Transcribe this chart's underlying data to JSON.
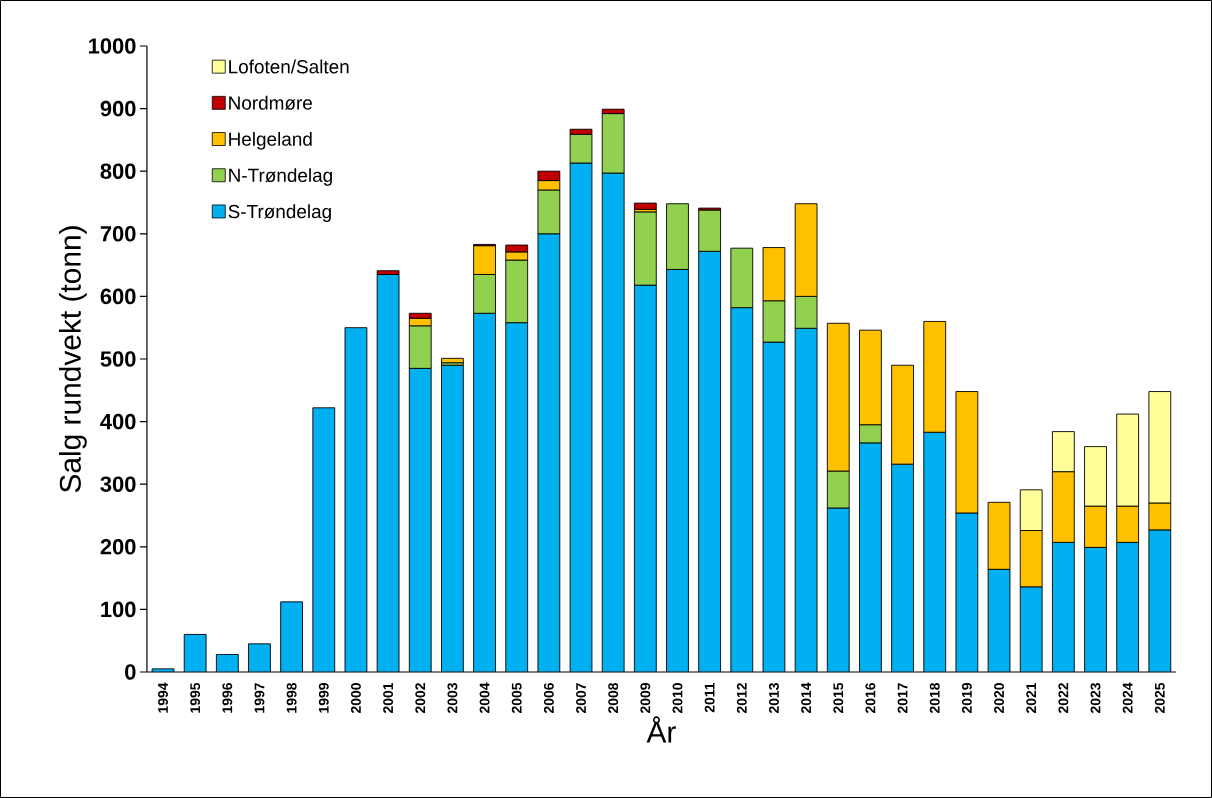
{
  "chart_data": {
    "type": "bar",
    "stacked": true,
    "xlabel": "År",
    "ylabel": "Salg rundvekt (tonn)",
    "categories": [
      "1994",
      "1995",
      "1996",
      "1997",
      "1998",
      "1999",
      "2000",
      "2001",
      "2002",
      "2003",
      "2004",
      "2005",
      "2006",
      "2007",
      "2008",
      "2009",
      "2010",
      "2011",
      "2012",
      "2013",
      "2014",
      "2015",
      "2016",
      "2017",
      "2018",
      "2019",
      "2020",
      "2021",
      "2022",
      "2023",
      "2024",
      "2025"
    ],
    "series": [
      {
        "name": "S-Trøndelag",
        "color": "#00b0f0",
        "values": [
          5,
          60,
          28,
          45,
          112,
          422,
          550,
          635,
          485,
          490,
          573,
          558,
          700,
          813,
          797,
          618,
          643,
          672,
          582,
          527,
          549,
          262,
          366,
          332,
          383,
          254,
          164,
          136,
          207,
          199,
          207,
          227
        ]
      },
      {
        "name": "N-Trøndelag",
        "color": "#92d050",
        "values": [
          null,
          null,
          null,
          null,
          null,
          null,
          null,
          null,
          68,
          4,
          62,
          100,
          70,
          46,
          95,
          117,
          105,
          66,
          95,
          66,
          51,
          59,
          29,
          null,
          null,
          null,
          null,
          null,
          null,
          null,
          null,
          null
        ]
      },
      {
        "name": "Helgeland",
        "color": "#ffc000",
        "values": [
          null,
          null,
          null,
          null,
          null,
          null,
          null,
          null,
          12,
          7,
          46,
          13,
          15,
          null,
          null,
          4,
          null,
          null,
          null,
          85,
          148,
          236,
          151,
          158,
          177,
          194,
          107,
          90,
          113,
          66,
          58,
          43
        ]
      },
      {
        "name": "Nordmøre",
        "color": "#c00000",
        "values": [
          null,
          null,
          null,
          null,
          null,
          null,
          null,
          6,
          8,
          null,
          2,
          11,
          15,
          8,
          7,
          10,
          null,
          3,
          null,
          null,
          null,
          null,
          null,
          null,
          null,
          null,
          null,
          null,
          null,
          null,
          null,
          null
        ]
      },
      {
        "name": "Lofoten/Salten",
        "color": "#ffff99",
        "values": [
          null,
          null,
          null,
          null,
          null,
          null,
          null,
          null,
          null,
          null,
          null,
          null,
          null,
          null,
          null,
          null,
          null,
          null,
          null,
          null,
          null,
          null,
          null,
          null,
          null,
          null,
          null,
          65,
          64,
          95,
          147,
          178
        ]
      }
    ],
    "ylim": [
      0,
      1000
    ],
    "yticks": [
      0,
      100,
      200,
      300,
      400,
      500,
      600,
      700,
      800,
      900,
      1000
    ],
    "legend": "top left"
  }
}
